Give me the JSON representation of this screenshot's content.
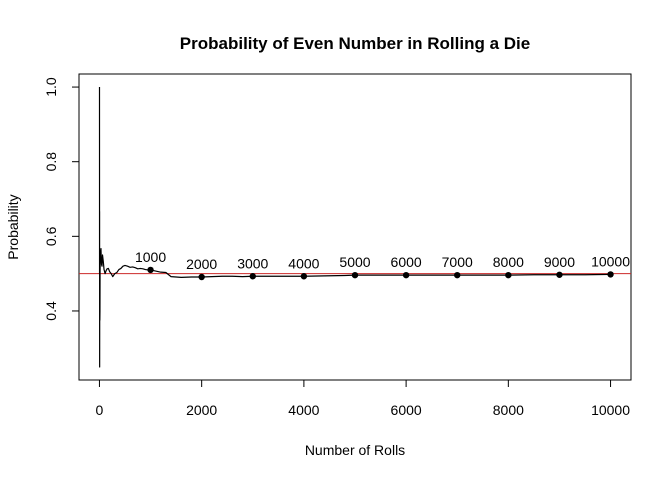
{
  "chart_data": {
    "type": "line",
    "title": "Probability of Even Number in Rolling a Die",
    "xlabel": "Number of Rolls",
    "ylabel": "Probability",
    "xlim": [
      -400,
      10400
    ],
    "ylim": [
      0.215,
      1.035
    ],
    "x_ticks": [
      0,
      2000,
      4000,
      6000,
      8000,
      10000
    ],
    "x_tick_labels": [
      "0",
      "2000",
      "4000",
      "6000",
      "8000",
      "10000"
    ],
    "y_ticks": [
      0.4,
      0.6,
      0.8,
      1.0
    ],
    "y_tick_labels": [
      "0.4",
      "0.6",
      "0.8",
      "1.0"
    ],
    "grid": false,
    "reference_line": {
      "y": 0.5,
      "color": "#cc2a2a"
    },
    "series": [
      {
        "color": "#000000",
        "x": [
          1,
          2,
          3,
          4,
          6,
          8,
          10,
          12,
          15,
          20,
          25,
          30,
          35,
          40,
          50,
          60,
          75,
          90,
          110,
          130,
          150,
          175,
          200,
          230,
          260,
          300,
          340,
          380,
          420,
          460,
          500,
          550,
          600,
          650,
          700,
          750,
          800,
          850,
          900,
          950,
          1000,
          1100,
          1200,
          1300,
          1400,
          1500,
          1600,
          1800,
          2000,
          2200,
          2400,
          2600,
          2800,
          3000,
          3300,
          3600,
          4000,
          4400,
          4800,
          5000,
          5500,
          6000,
          6500,
          7000,
          7500,
          8000,
          8500,
          9000,
          9500,
          10000
        ],
        "y": [
          1.0,
          0.5,
          0.667,
          0.25,
          0.5,
          0.375,
          0.4,
          0.5,
          0.533,
          0.55,
          0.56,
          0.567,
          0.543,
          0.525,
          0.52,
          0.55,
          0.533,
          0.511,
          0.5,
          0.508,
          0.513,
          0.514,
          0.505,
          0.5,
          0.492,
          0.5,
          0.503,
          0.511,
          0.514,
          0.52,
          0.522,
          0.52,
          0.517,
          0.518,
          0.516,
          0.513,
          0.514,
          0.513,
          0.511,
          0.51,
          0.51,
          0.507,
          0.504,
          0.503,
          0.492,
          0.491,
          0.49,
          0.491,
          0.491,
          0.492,
          0.493,
          0.493,
          0.492,
          0.493,
          0.493,
          0.493,
          0.493,
          0.494,
          0.495,
          0.496,
          0.496,
          0.496,
          0.496,
          0.496,
          0.496,
          0.496,
          0.497,
          0.497,
          0.497,
          0.498
        ]
      }
    ],
    "markers": {
      "x": [
        1000,
        2000,
        3000,
        4000,
        5000,
        6000,
        7000,
        8000,
        9000,
        10000
      ],
      "y": [
        0.51,
        0.491,
        0.493,
        0.493,
        0.496,
        0.496,
        0.496,
        0.496,
        0.497,
        0.498
      ],
      "labels": [
        "1000",
        "2000",
        "3000",
        "4000",
        "5000",
        "6000",
        "7000",
        "8000",
        "9000",
        "10000"
      ]
    }
  }
}
